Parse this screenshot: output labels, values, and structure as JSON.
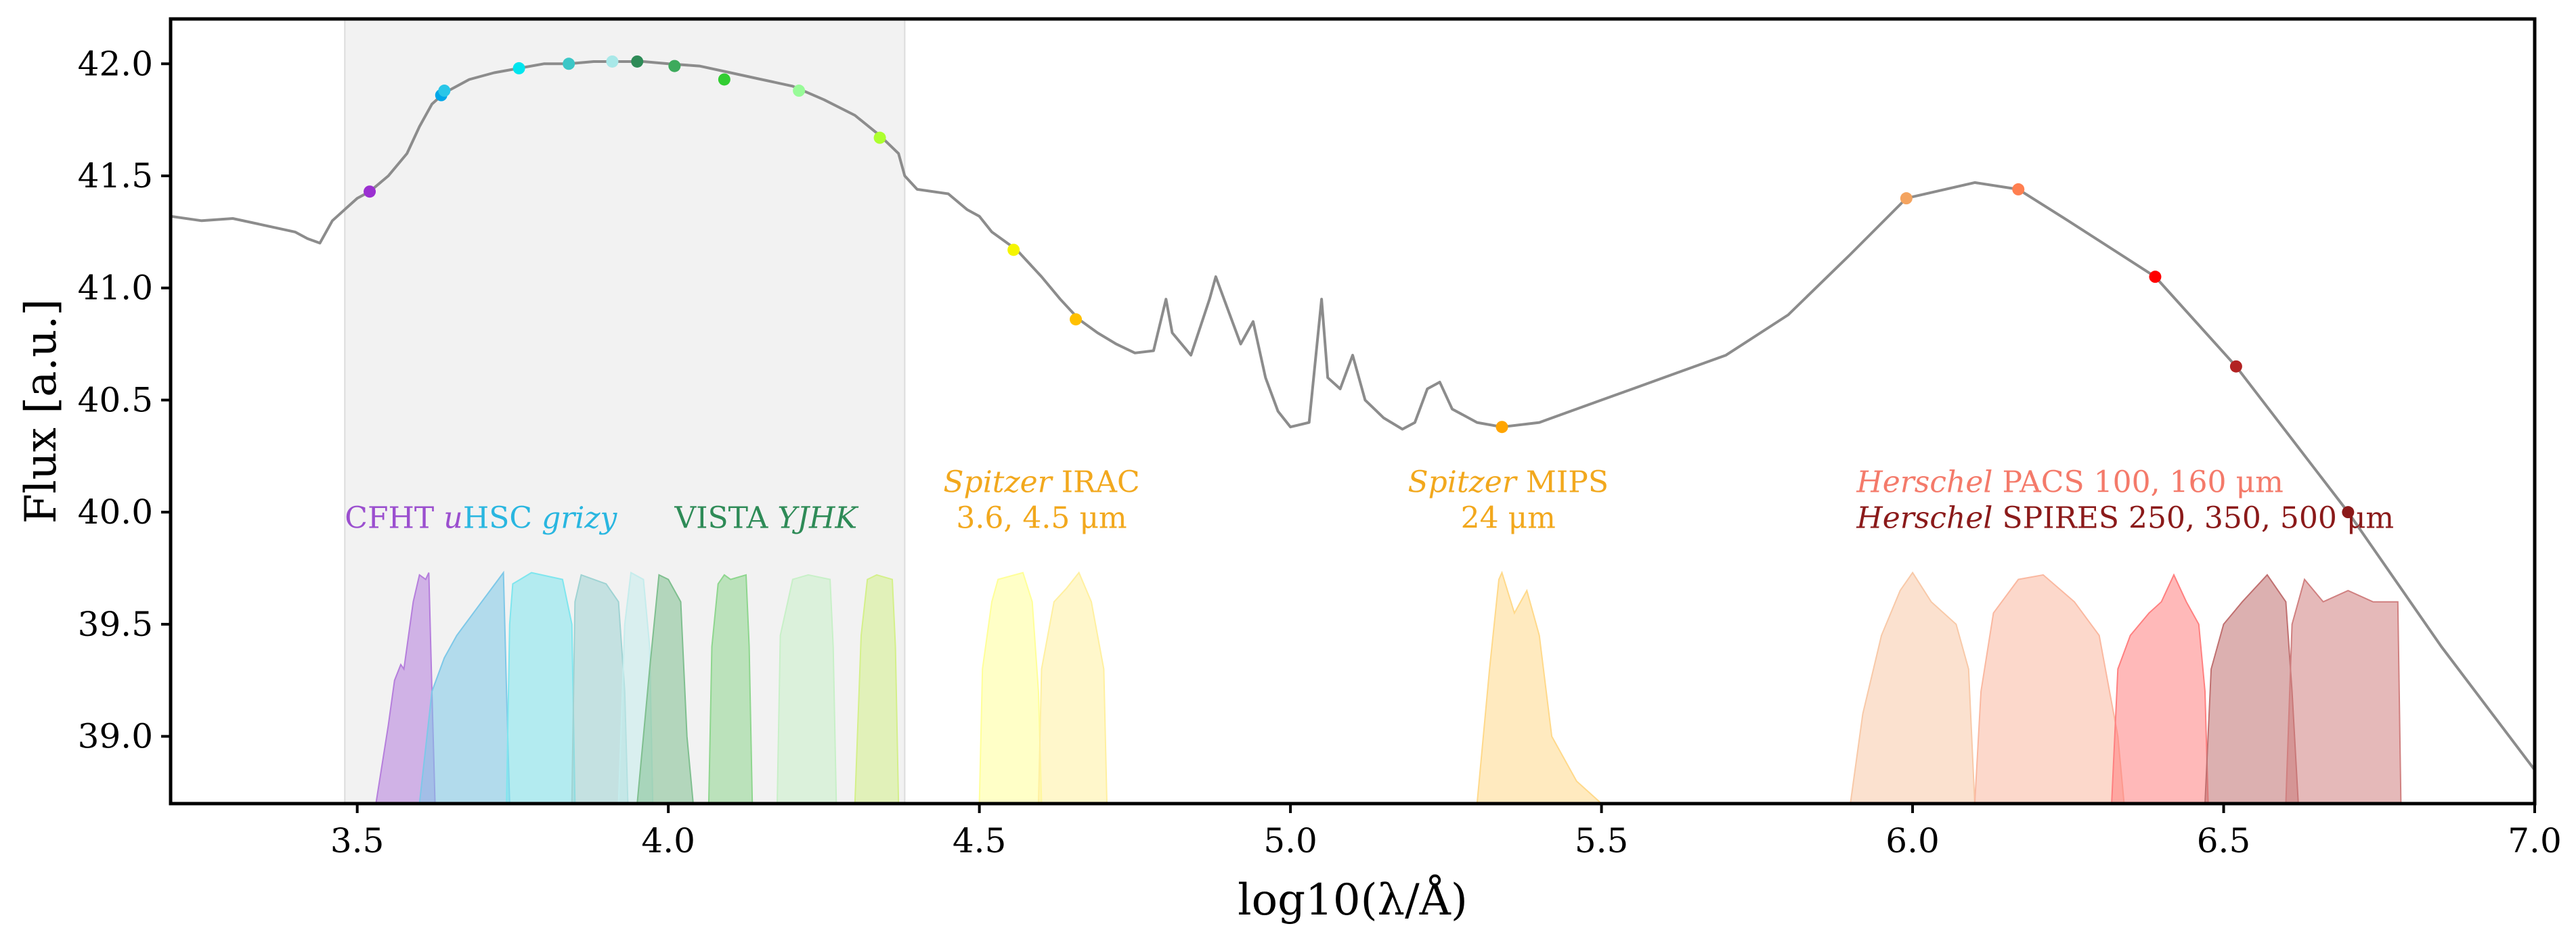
{
  "chart_data": {
    "type": "line",
    "title": "",
    "xlabel": "log10(λ/Å)",
    "ylabel": "Flux [a.u.]",
    "xlim": [
      3.2,
      7.0
    ],
    "ylim": [
      38.7,
      42.2
    ],
    "xticks": [
      "3.5",
      "4.0",
      "4.5",
      "5.0",
      "5.5",
      "6.0",
      "6.5",
      "7.0"
    ],
    "yticks": [
      "39.0",
      "39.5",
      "40.0",
      "40.5",
      "41.0",
      "41.5",
      "42.0"
    ],
    "shaded_region": {
      "x_range": [
        3.48,
        4.38
      ],
      "color": "#f2f2f2"
    },
    "sed_curve": {
      "color": "#8c8c8c",
      "points": [
        [
          3.2,
          41.32
        ],
        [
          3.25,
          41.3
        ],
        [
          3.3,
          41.31
        ],
        [
          3.35,
          41.28
        ],
        [
          3.4,
          41.25
        ],
        [
          3.42,
          41.22
        ],
        [
          3.44,
          41.2
        ],
        [
          3.46,
          41.3
        ],
        [
          3.48,
          41.35
        ],
        [
          3.5,
          41.4
        ],
        [
          3.52,
          41.43
        ],
        [
          3.55,
          41.5
        ],
        [
          3.58,
          41.6
        ],
        [
          3.6,
          41.72
        ],
        [
          3.62,
          41.82
        ],
        [
          3.64,
          41.87
        ],
        [
          3.68,
          41.93
        ],
        [
          3.72,
          41.96
        ],
        [
          3.76,
          41.98
        ],
        [
          3.8,
          42.0
        ],
        [
          3.84,
          42.0
        ],
        [
          3.88,
          42.01
        ],
        [
          3.92,
          42.01
        ],
        [
          3.96,
          42.01
        ],
        [
          4.0,
          42.0
        ],
        [
          4.05,
          41.99
        ],
        [
          4.1,
          41.96
        ],
        [
          4.15,
          41.93
        ],
        [
          4.2,
          41.9
        ],
        [
          4.25,
          41.84
        ],
        [
          4.3,
          41.77
        ],
        [
          4.34,
          41.68
        ],
        [
          4.37,
          41.6
        ],
        [
          4.38,
          41.5
        ],
        [
          4.4,
          41.44
        ],
        [
          4.45,
          41.42
        ],
        [
          4.48,
          41.35
        ],
        [
          4.5,
          41.32
        ],
        [
          4.52,
          41.25
        ],
        [
          4.56,
          41.17
        ],
        [
          4.6,
          41.05
        ],
        [
          4.63,
          40.95
        ],
        [
          4.66,
          40.86
        ],
        [
          4.69,
          40.8
        ],
        [
          4.72,
          40.75
        ],
        [
          4.75,
          40.71
        ],
        [
          4.78,
          40.72
        ],
        [
          4.8,
          40.95
        ],
        [
          4.81,
          40.8
        ],
        [
          4.84,
          40.7
        ],
        [
          4.87,
          40.95
        ],
        [
          4.88,
          41.05
        ],
        [
          4.9,
          40.9
        ],
        [
          4.92,
          40.75
        ],
        [
          4.94,
          40.85
        ],
        [
          4.96,
          40.6
        ],
        [
          4.98,
          40.45
        ],
        [
          5.0,
          40.38
        ],
        [
          5.03,
          40.4
        ],
        [
          5.05,
          40.95
        ],
        [
          5.06,
          40.6
        ],
        [
          5.08,
          40.55
        ],
        [
          5.1,
          40.7
        ],
        [
          5.12,
          40.5
        ],
        [
          5.15,
          40.42
        ],
        [
          5.18,
          40.37
        ],
        [
          5.2,
          40.4
        ],
        [
          5.22,
          40.55
        ],
        [
          5.24,
          40.58
        ],
        [
          5.26,
          40.46
        ],
        [
          5.3,
          40.4
        ],
        [
          5.34,
          40.38
        ],
        [
          5.4,
          40.4
        ],
        [
          5.5,
          40.5
        ],
        [
          5.6,
          40.6
        ],
        [
          5.7,
          40.7
        ],
        [
          5.8,
          40.88
        ],
        [
          5.9,
          41.15
        ],
        [
          5.99,
          41.4
        ],
        [
          6.1,
          41.47
        ],
        [
          6.17,
          41.44
        ],
        [
          6.25,
          41.3
        ],
        [
          6.39,
          41.05
        ],
        [
          6.52,
          40.65
        ],
        [
          6.7,
          40.0
        ],
        [
          6.85,
          39.4
        ],
        [
          7.0,
          38.85
        ]
      ]
    },
    "markers": [
      {
        "x": 3.52,
        "y": 41.43,
        "color": "#9b30d1"
      },
      {
        "x": 3.635,
        "y": 41.86,
        "color": "#00a6e8"
      },
      {
        "x": 3.64,
        "y": 41.88,
        "color": "#29c6e8"
      },
      {
        "x": 3.76,
        "y": 41.98,
        "color": "#00e5ee"
      },
      {
        "x": 3.84,
        "y": 42.0,
        "color": "#3cc7c7"
      },
      {
        "x": 3.91,
        "y": 42.01,
        "color": "#a8e8e8"
      },
      {
        "x": 3.95,
        "y": 42.01,
        "color": "#2e8b57"
      },
      {
        "x": 4.01,
        "y": 41.99,
        "color": "#3daa5c"
      },
      {
        "x": 4.09,
        "y": 41.93,
        "color": "#32cd32"
      },
      {
        "x": 4.21,
        "y": 41.88,
        "color": "#98fb98"
      },
      {
        "x": 4.34,
        "y": 41.67,
        "color": "#adff2f"
      },
      {
        "x": 4.555,
        "y": 41.17,
        "color": "#f5f500"
      },
      {
        "x": 4.655,
        "y": 40.86,
        "color": "#ffc000"
      },
      {
        "x": 5.34,
        "y": 40.38,
        "color": "#ffa500"
      },
      {
        "x": 5.99,
        "y": 41.4,
        "color": "#f4a460"
      },
      {
        "x": 6.17,
        "y": 41.44,
        "color": "#ff7f50"
      },
      {
        "x": 6.39,
        "y": 41.05,
        "color": "#ff0000"
      },
      {
        "x": 6.52,
        "y": 40.65,
        "color": "#b22222"
      },
      {
        "x": 6.7,
        "y": 40.0,
        "color": "#8b1a1a"
      }
    ],
    "filters": [
      {
        "name": "CFHT u",
        "color": "#b57edc",
        "points": [
          [
            3.53,
            38.7
          ],
          [
            3.55,
            39.05
          ],
          [
            3.56,
            39.25
          ],
          [
            3.57,
            39.32
          ],
          [
            3.575,
            39.3
          ],
          [
            3.58,
            39.4
          ],
          [
            3.59,
            39.6
          ],
          [
            3.6,
            39.72
          ],
          [
            3.61,
            39.7
          ],
          [
            3.615,
            39.73
          ],
          [
            3.62,
            39.2
          ],
          [
            3.625,
            38.7
          ]
        ]
      },
      {
        "name": "HSC g",
        "color": "#7ec8e8",
        "points": [
          [
            3.6,
            38.7
          ],
          [
            3.62,
            39.2
          ],
          [
            3.64,
            39.35
          ],
          [
            3.66,
            39.45
          ],
          [
            3.7,
            39.6
          ],
          [
            3.735,
            39.73
          ],
          [
            3.74,
            39.2
          ],
          [
            3.745,
            38.7
          ]
        ]
      },
      {
        "name": "HSC r",
        "color": "#7fe6ee",
        "points": [
          [
            3.74,
            38.7
          ],
          [
            3.745,
            39.5
          ],
          [
            3.75,
            39.68
          ],
          [
            3.78,
            39.73
          ],
          [
            3.83,
            39.7
          ],
          [
            3.845,
            39.5
          ],
          [
            3.85,
            38.7
          ]
        ]
      },
      {
        "name": "HSC i",
        "color": "#9fd3d3",
        "points": [
          [
            3.845,
            38.7
          ],
          [
            3.85,
            39.6
          ],
          [
            3.86,
            39.72
          ],
          [
            3.88,
            39.7
          ],
          [
            3.9,
            39.68
          ],
          [
            3.92,
            39.6
          ],
          [
            3.93,
            39.2
          ],
          [
            3.935,
            38.7
          ]
        ]
      },
      {
        "name": "HSC z",
        "color": "#c5ecec",
        "points": [
          [
            3.92,
            38.7
          ],
          [
            3.93,
            39.5
          ],
          [
            3.94,
            39.73
          ],
          [
            3.96,
            39.7
          ],
          [
            3.97,
            39.4
          ],
          [
            3.975,
            38.7
          ]
        ]
      },
      {
        "name": "HSC y / VISTA",
        "color": "#7fbf8f",
        "points": [
          [
            3.95,
            38.7
          ],
          [
            3.97,
            39.3
          ],
          [
            3.985,
            39.72
          ],
          [
            4.0,
            39.7
          ],
          [
            4.02,
            39.6
          ],
          [
            4.03,
            39.0
          ],
          [
            4.04,
            38.7
          ]
        ]
      },
      {
        "name": "VISTA J",
        "color": "#8ed68e",
        "points": [
          [
            4.065,
            38.7
          ],
          [
            4.07,
            39.4
          ],
          [
            4.08,
            39.68
          ],
          [
            4.09,
            39.72
          ],
          [
            4.1,
            39.7
          ],
          [
            4.125,
            39.72
          ],
          [
            4.13,
            39.4
          ],
          [
            4.135,
            38.7
          ]
        ]
      },
      {
        "name": "VISTA H",
        "color": "#c8f0c8",
        "points": [
          [
            4.175,
            38.7
          ],
          [
            4.18,
            39.45
          ],
          [
            4.2,
            39.7
          ],
          [
            4.225,
            39.72
          ],
          [
            4.26,
            39.7
          ],
          [
            4.265,
            39.4
          ],
          [
            4.27,
            38.7
          ]
        ]
      },
      {
        "name": "VISTA K",
        "color": "#d4f08a",
        "points": [
          [
            4.3,
            38.7
          ],
          [
            4.31,
            39.45
          ],
          [
            4.32,
            39.7
          ],
          [
            4.335,
            39.72
          ],
          [
            4.36,
            39.7
          ],
          [
            4.365,
            39.4
          ],
          [
            4.37,
            38.7
          ]
        ]
      },
      {
        "name": "IRAC 3.6",
        "color": "#ffff99",
        "points": [
          [
            4.5,
            38.7
          ],
          [
            4.505,
            39.3
          ],
          [
            4.52,
            39.6
          ],
          [
            4.53,
            39.7
          ],
          [
            4.57,
            39.73
          ],
          [
            4.585,
            39.6
          ],
          [
            4.595,
            39.2
          ],
          [
            4.6,
            38.7
          ]
        ]
      },
      {
        "name": "IRAC 4.5",
        "color": "#fff0a0",
        "points": [
          [
            4.595,
            38.7
          ],
          [
            4.6,
            39.3
          ],
          [
            4.62,
            39.6
          ],
          [
            4.64,
            39.66
          ],
          [
            4.66,
            39.73
          ],
          [
            4.68,
            39.6
          ],
          [
            4.7,
            39.3
          ],
          [
            4.705,
            38.7
          ]
        ]
      },
      {
        "name": "MIPS 24",
        "color": "#ffd98a",
        "points": [
          [
            5.3,
            38.7
          ],
          [
            5.32,
            39.3
          ],
          [
            5.335,
            39.7
          ],
          [
            5.34,
            39.73
          ],
          [
            5.36,
            39.55
          ],
          [
            5.38,
            39.65
          ],
          [
            5.4,
            39.45
          ],
          [
            5.42,
            39.0
          ],
          [
            5.46,
            38.8
          ],
          [
            5.5,
            38.7
          ]
        ]
      },
      {
        "name": "PACS 100",
        "color": "#f8c9a8",
        "points": [
          [
            5.9,
            38.7
          ],
          [
            5.92,
            39.1
          ],
          [
            5.95,
            39.45
          ],
          [
            5.98,
            39.65
          ],
          [
            6.0,
            39.73
          ],
          [
            6.03,
            39.6
          ],
          [
            6.07,
            39.5
          ],
          [
            6.09,
            39.3
          ],
          [
            6.1,
            38.7
          ]
        ]
      },
      {
        "name": "PACS 160",
        "color": "#fab8a0",
        "points": [
          [
            6.1,
            38.7
          ],
          [
            6.11,
            39.2
          ],
          [
            6.13,
            39.55
          ],
          [
            6.17,
            39.7
          ],
          [
            6.21,
            39.72
          ],
          [
            6.26,
            39.6
          ],
          [
            6.3,
            39.45
          ],
          [
            6.33,
            39.0
          ],
          [
            6.34,
            38.7
          ]
        ]
      },
      {
        "name": "SPIRE 250",
        "color": "#ff8080",
        "points": [
          [
            6.32,
            38.7
          ],
          [
            6.33,
            39.3
          ],
          [
            6.35,
            39.45
          ],
          [
            6.38,
            39.55
          ],
          [
            6.4,
            39.6
          ],
          [
            6.42,
            39.72
          ],
          [
            6.44,
            39.6
          ],
          [
            6.46,
            39.5
          ],
          [
            6.47,
            39.2
          ],
          [
            6.475,
            38.7
          ]
        ]
      },
      {
        "name": "SPIRE 350",
        "color": "#c07070",
        "points": [
          [
            6.47,
            38.7
          ],
          [
            6.48,
            39.3
          ],
          [
            6.5,
            39.5
          ],
          [
            6.53,
            39.6
          ],
          [
            6.57,
            39.72
          ],
          [
            6.6,
            39.6
          ],
          [
            6.61,
            39.2
          ],
          [
            6.62,
            38.7
          ]
        ]
      },
      {
        "name": "SPIRE 500",
        "color": "#d08080",
        "points": [
          [
            6.6,
            38.7
          ],
          [
            6.61,
            39.5
          ],
          [
            6.63,
            39.7
          ],
          [
            6.66,
            39.6
          ],
          [
            6.7,
            39.65
          ],
          [
            6.74,
            39.6
          ],
          [
            6.78,
            39.6
          ],
          [
            6.785,
            38.7
          ]
        ]
      }
    ],
    "annotations": [
      {
        "segments": [
          {
            "text": "CFHT ",
            "italic": false
          },
          {
            "text": "u",
            "italic": true
          }
        ],
        "x": 3.48,
        "y": 39.93,
        "anchor": "start",
        "color": "#9b4fcf"
      },
      {
        "segments": [
          {
            "text": "HSC ",
            "italic": false
          },
          {
            "text": "grizy",
            "italic": true
          }
        ],
        "x": 3.67,
        "y": 39.93,
        "anchor": "start",
        "color": "#29b6e0"
      },
      {
        "segments": [
          {
            "text": "VISTA  ",
            "italic": false
          },
          {
            "text": "YJHK",
            "italic": true
          }
        ],
        "x": 4.01,
        "y": 39.93,
        "anchor": "start",
        "color": "#2e8b57"
      },
      {
        "segments": [
          {
            "text": "Spitzer",
            "italic": true
          },
          {
            "text": " IRAC",
            "italic": false
          }
        ],
        "x": 4.6,
        "y": 40.09,
        "anchor": "middle",
        "color": "#f2a81d"
      },
      {
        "segments": [
          {
            "text": "3.6, 4.5 μm",
            "italic": false
          }
        ],
        "x": 4.6,
        "y": 39.93,
        "anchor": "middle",
        "color": "#f2a81d"
      },
      {
        "segments": [
          {
            "text": "Spitzer",
            "italic": true
          },
          {
            "text": " MIPS",
            "italic": false
          }
        ],
        "x": 5.35,
        "y": 40.09,
        "anchor": "middle",
        "color": "#f2a81d"
      },
      {
        "segments": [
          {
            "text": "24 μm",
            "italic": false
          }
        ],
        "x": 5.35,
        "y": 39.93,
        "anchor": "middle",
        "color": "#f2a81d"
      },
      {
        "segments": [
          {
            "text": "Herschel",
            "italic": true
          },
          {
            "text": " PACS 100, 160 μm",
            "italic": false
          }
        ],
        "x": 5.91,
        "y": 40.09,
        "anchor": "start",
        "color": "#f47a6a"
      },
      {
        "segments": [
          {
            "text": "Herschel",
            "italic": true
          },
          {
            "text": " SPIRES 250, 350, 500 μm",
            "italic": false
          }
        ],
        "x": 5.91,
        "y": 39.93,
        "anchor": "start",
        "color": "#8b1a1a"
      }
    ]
  }
}
